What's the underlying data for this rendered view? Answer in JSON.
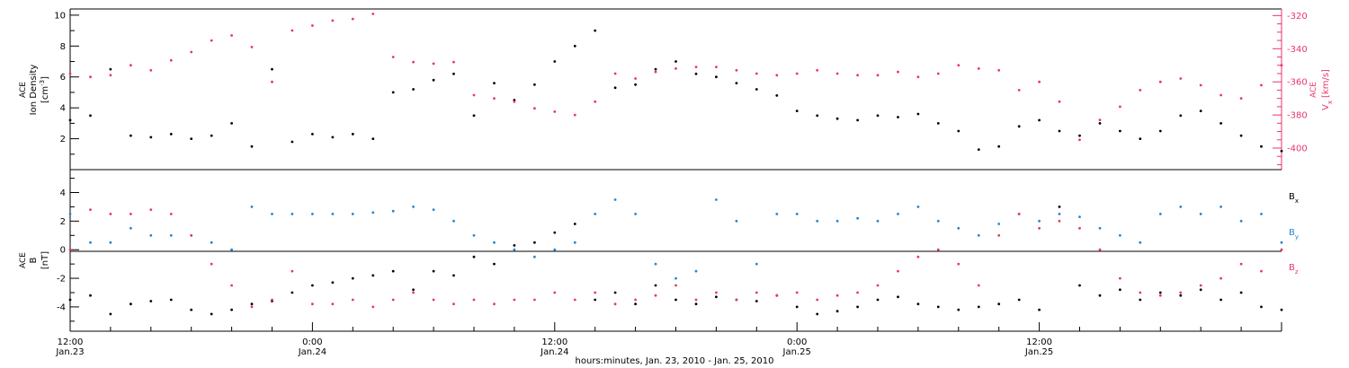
{
  "colors": {
    "black": "#000000",
    "pink": "#e8366a",
    "blue": "#1e88d8"
  },
  "xaxis": {
    "title": "hours:minutes, Jan. 23, 2010 - Jan. 25, 2010",
    "ticks": [
      {
        "time": "12:00",
        "date": "Jan.23"
      },
      {
        "time": "0:00",
        "date": "Jan.24"
      },
      {
        "time": "12:00",
        "date": "Jan.24"
      },
      {
        "time": "0:00",
        "date": "Jan.25"
      },
      {
        "time": "12:00",
        "date": "Jan.25"
      }
    ]
  },
  "top_panel": {
    "ylabel_left": {
      "source": "ACE",
      "quantity": "Ion Density",
      "unit": "[cm",
      "unit_sup": "-3",
      "unit_end": "]"
    },
    "ylabel_right": {
      "source": "ACE",
      "quantity": "V",
      "sub": "x",
      "unit": "[km/s]"
    },
    "left_ticks": [
      "2",
      "4",
      "6",
      "8",
      "10"
    ],
    "right_ticks": [
      "-320",
      "-340",
      "-360",
      "-380",
      "-400"
    ]
  },
  "bottom_panel": {
    "ylabel": {
      "source": "ACE",
      "quantity": "B",
      "unit": "[nT]"
    },
    "left_ticks": [
      "-4",
      "-2",
      "0",
      "2",
      "4"
    ],
    "legend": [
      {
        "name": "B",
        "sub": "x"
      },
      {
        "name": "B",
        "sub": "y"
      },
      {
        "name": "B",
        "sub": "z"
      }
    ]
  },
  "chart_data": [
    {
      "type": "scatter",
      "panel": "top",
      "x_unit": "hours since 2010-01-23 12:00",
      "xlim": [
        0,
        60
      ],
      "series": [
        {
          "color": "black",
          "axis": "left",
          "ylim": [
            0,
            10.4
          ],
          "x": [
            0,
            1,
            2,
            3,
            4,
            5,
            6,
            7,
            8,
            9,
            10,
            11,
            12,
            13,
            14,
            15,
            16,
            17,
            18,
            19,
            20,
            21,
            22,
            23,
            24,
            25,
            26,
            27,
            28,
            29,
            30,
            31,
            32,
            33,
            34,
            35,
            36,
            37,
            38,
            39,
            40,
            41,
            42,
            43,
            44,
            45,
            46,
            47,
            48,
            49,
            50,
            51,
            52,
            53,
            54,
            55,
            56,
            57,
            58,
            59,
            60
          ],
          "y": [
            3.2,
            3.5,
            6.5,
            2.2,
            2.1,
            2.3,
            2.0,
            2.2,
            3.0,
            1.5,
            6.5,
            1.8,
            2.3,
            2.1,
            2.3,
            2.0,
            5.0,
            5.2,
            5.8,
            6.2,
            3.5,
            5.6,
            4.5,
            5.5,
            7.0,
            8.0,
            9.0,
            5.3,
            5.5,
            6.5,
            7.0,
            6.2,
            6.0,
            5.6,
            5.2,
            4.8,
            3.8,
            3.5,
            3.3,
            3.2,
            3.5,
            3.4,
            3.6,
            3.0,
            2.5,
            1.3,
            1.5,
            2.8,
            3.2,
            2.5,
            2.2,
            3.0,
            2.5,
            2.0,
            2.5,
            3.5,
            3.8,
            3.0,
            2.2,
            1.5,
            1.2
          ]
        },
        {
          "color": "pink",
          "axis": "right",
          "ylim": [
            -413,
            -316
          ],
          "x": [
            0,
            1,
            2,
            3,
            4,
            5,
            6,
            7,
            8,
            9,
            10,
            11,
            12,
            13,
            14,
            15,
            16,
            17,
            18,
            19,
            20,
            21,
            22,
            23,
            24,
            25,
            26,
            27,
            28,
            29,
            30,
            31,
            32,
            33,
            34,
            35,
            36,
            37,
            38,
            39,
            40,
            41,
            42,
            43,
            44,
            45,
            46,
            47,
            48,
            49,
            50,
            51,
            52,
            53,
            54,
            55,
            56,
            57,
            58,
            59,
            60
          ],
          "y": [
            -355,
            -357,
            -356,
            -350,
            -353,
            -347,
            -342,
            -335,
            -332,
            -339,
            -360,
            -329,
            -326,
            -323,
            -322,
            -319,
            -345,
            -348,
            -349,
            -348,
            -368,
            -370,
            -372,
            -376,
            -378,
            -380,
            -372,
            -355,
            -358,
            -354,
            -352,
            -351,
            -351,
            -353,
            -355,
            -356,
            -355,
            -353,
            -355,
            -356,
            -356,
            -354,
            -357,
            -355,
            -350,
            -352,
            -353,
            -365,
            -360,
            -372,
            -395,
            -383,
            -375,
            -365,
            -360,
            -358,
            -362,
            -368,
            -370,
            -362,
            -350
          ]
        }
      ]
    },
    {
      "type": "scatter",
      "panel": "bottom",
      "x_unit": "hours since 2010-01-23 12:00",
      "xlim": [
        0,
        60
      ],
      "ylim": [
        -5.7,
        5.6
      ],
      "series": [
        {
          "color": "black",
          "x": [
            0,
            1,
            2,
            3,
            4,
            5,
            6,
            7,
            8,
            9,
            10,
            11,
            12,
            13,
            14,
            15,
            16,
            17,
            18,
            19,
            20,
            21,
            22,
            23,
            24,
            25,
            26,
            27,
            28,
            29,
            30,
            31,
            32,
            33,
            34,
            35,
            36,
            37,
            38,
            39,
            40,
            41,
            42,
            43,
            44,
            45,
            46,
            47,
            48,
            49,
            50,
            51,
            52,
            53,
            54,
            55,
            56,
            57,
            58,
            59,
            60
          ],
          "y": [
            -3.5,
            -3.2,
            -4.5,
            -3.8,
            -3.6,
            -3.5,
            -4.2,
            -4.5,
            -4.2,
            -3.8,
            -3.6,
            -3.0,
            -2.5,
            -2.3,
            -2.0,
            -1.8,
            -1.5,
            -2.8,
            -1.5,
            -1.8,
            -0.5,
            -1.0,
            0.3,
            0.5,
            1.2,
            1.8,
            -3.5,
            -3.0,
            -3.8,
            -2.5,
            -3.5,
            -3.8,
            -3.3,
            -3.5,
            -3.6,
            -3.2,
            -4.0,
            -4.5,
            -4.3,
            -4.0,
            -3.5,
            -3.3,
            -3.8,
            -4.0,
            -4.2,
            -4.0,
            -3.8,
            -3.5,
            -4.2,
            3.0,
            -2.5,
            -3.2,
            -2.8,
            -3.5,
            -3.0,
            -3.2,
            -2.8,
            -3.5,
            -3.0,
            -4.0,
            -4.2
          ]
        },
        {
          "color": "blue",
          "x": [
            0,
            1,
            2,
            3,
            4,
            5,
            6,
            7,
            8,
            9,
            10,
            11,
            12,
            13,
            14,
            15,
            16,
            17,
            18,
            19,
            20,
            21,
            22,
            23,
            24,
            25,
            26,
            27,
            28,
            29,
            30,
            31,
            32,
            33,
            34,
            35,
            36,
            37,
            38,
            39,
            40,
            41,
            42,
            43,
            44,
            45,
            46,
            47,
            48,
            49,
            50,
            51,
            52,
            53,
            54,
            55,
            56,
            57,
            58,
            59,
            60
          ],
          "y": [
            2.5,
            0.5,
            0.5,
            1.5,
            1.0,
            1.0,
            1.0,
            0.5,
            0.0,
            3.0,
            2.5,
            2.5,
            2.5,
            2.5,
            2.5,
            2.6,
            2.7,
            3.0,
            2.8,
            2.0,
            1.0,
            0.5,
            0.0,
            -0.5,
            0.0,
            0.5,
            2.5,
            3.5,
            2.5,
            -1.0,
            -2.0,
            -1.5,
            3.5,
            2.0,
            -1.0,
            2.5,
            2.5,
            2.0,
            2.0,
            2.2,
            2.0,
            2.5,
            3.0,
            2.0,
            1.5,
            1.0,
            1.8,
            2.5,
            2.0,
            2.5,
            2.3,
            1.5,
            1.0,
            0.5,
            2.5,
            3.0,
            2.5,
            3.0,
            2.0,
            2.5,
            0.5
          ]
        },
        {
          "color": "pink",
          "x": [
            0,
            1,
            2,
            3,
            4,
            5,
            6,
            7,
            8,
            9,
            10,
            11,
            12,
            13,
            14,
            15,
            16,
            17,
            18,
            19,
            20,
            21,
            22,
            23,
            24,
            25,
            26,
            27,
            28,
            29,
            30,
            31,
            32,
            33,
            34,
            35,
            36,
            37,
            38,
            39,
            40,
            41,
            42,
            43,
            44,
            45,
            46,
            47,
            48,
            49,
            50,
            51,
            52,
            53,
            54,
            55,
            56,
            57,
            58,
            59,
            60
          ],
          "y": [
            0.0,
            2.8,
            2.5,
            2.5,
            2.8,
            2.5,
            1.0,
            -1.0,
            -2.5,
            -4.0,
            -3.5,
            -1.5,
            -3.8,
            -3.8,
            -3.5,
            -4.0,
            -3.5,
            -3.0,
            -3.5,
            -3.8,
            -3.5,
            -3.8,
            -3.5,
            -3.5,
            -3.0,
            -3.5,
            -3.0,
            -3.8,
            -3.5,
            -3.2,
            -2.5,
            -3.5,
            -3.0,
            -3.5,
            -3.0,
            -3.2,
            -3.0,
            -3.5,
            -3.2,
            -3.0,
            -2.5,
            -1.5,
            -0.5,
            0.0,
            -1.0,
            -2.5,
            1.0,
            2.5,
            1.5,
            2.0,
            1.5,
            0.0,
            -2.0,
            -3.0,
            -3.2,
            -3.0,
            -2.5,
            -2.0,
            -1.0,
            -1.5,
            0.0
          ]
        }
      ]
    }
  ]
}
